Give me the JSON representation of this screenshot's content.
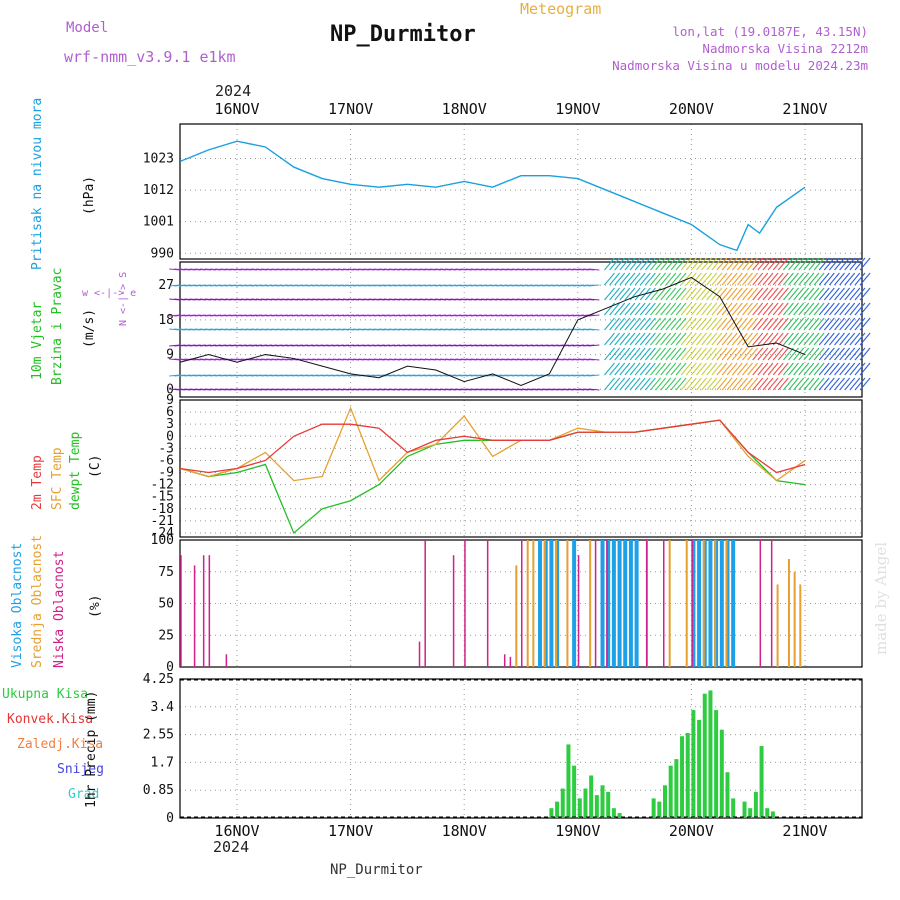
{
  "header": {
    "model_label": "Model",
    "model_value": "wrf-nmm_v3.9.1 e1km",
    "title": "NP_Durmitor",
    "meteogram": "Meteogram",
    "lonlat": "lon,lat (19.0187E, 43.15N)",
    "elev": "Nadmorska Visina 2212m",
    "elev_model": "Nadmorska Visina u modelu 2024.23m",
    "year_top": "2024",
    "year_bottom": "2024",
    "footer": "NP_Durmitor",
    "credit": "made by Angel"
  },
  "colors": {
    "pressure": "#1aa0e0",
    "temp2m": "#e83a3a",
    "sfc": "#e6a030",
    "dew": "#22c022",
    "high_cloud": "#1ea0e8",
    "mid_cloud": "#e6a030",
    "low_cloud": "#d0208a",
    "precip_total": "#2ecc40",
    "precip_conv": "#e53535",
    "snow": "#4444dd"
  },
  "chart_data": [
    {
      "type": "line",
      "panel": "pressure",
      "ylabel": "(hPa)",
      "side_label": "Pritisak na nivou mora",
      "yticks": [
        990,
        1001,
        1012,
        1023
      ],
      "ylim": [
        988,
        1035
      ],
      "xticks": [
        "16NOV",
        "17NOV",
        "18NOV",
        "19NOV",
        "20NOV",
        "21NOV"
      ],
      "x_days": [
        0.0,
        0.25,
        0.5,
        0.75,
        1.0,
        1.25,
        1.5,
        1.75,
        2.0,
        2.25,
        2.5,
        2.75,
        3.0,
        3.25,
        3.5,
        3.75,
        4.0,
        4.25,
        4.5,
        4.75,
        4.9,
        5.0,
        5.1,
        5.25,
        5.5
      ],
      "series": [
        {
          "values": [
            1022,
            1026,
            1029,
            1027,
            1020,
            1016,
            1014,
            1013,
            1014,
            1013,
            1015,
            1013,
            1017,
            1017,
            1016,
            1012,
            1008,
            1004,
            1000,
            993,
            991,
            1000,
            997,
            1006,
            1013
          ]
        }
      ]
    },
    {
      "type": "line",
      "panel": "wind",
      "ylabel": "(m/s)",
      "side_label": "10m Vjetar Brzina i Pravac",
      "compass": "w <-|-> e",
      "compass_ns": "N <-|-> S",
      "yticks": [
        0,
        9,
        18,
        27
      ],
      "ylim": [
        -2,
        33
      ],
      "x_days": [
        0.0,
        0.25,
        0.5,
        0.75,
        1.0,
        1.25,
        1.5,
        1.75,
        2.0,
        2.25,
        2.5,
        2.75,
        3.0,
        3.25,
        3.5,
        3.75,
        4.0,
        4.25,
        4.5,
        4.75,
        5.0,
        5.25,
        5.5
      ],
      "series": [
        {
          "values": [
            7,
            9,
            7,
            9,
            8,
            6,
            4,
            3,
            6,
            5,
            2,
            4,
            1,
            4,
            18,
            21,
            24,
            26,
            29,
            24,
            11,
            12,
            9
          ]
        }
      ]
    },
    {
      "type": "line",
      "panel": "temperature",
      "ylabel": "(C)",
      "side_labels": [
        "2m Temp",
        "SFC Temp",
        "dewpt Temp"
      ],
      "yticks": [
        -24,
        -21,
        -18,
        -15,
        -12,
        -9,
        -6,
        -3,
        0,
        3,
        6,
        9
      ],
      "ylim": [
        -25,
        9
      ],
      "x_days": [
        0.0,
        0.25,
        0.5,
        0.75,
        1.0,
        1.25,
        1.5,
        1.75,
        2.0,
        2.25,
        2.5,
        2.75,
        3.0,
        3.25,
        3.5,
        3.75,
        4.0,
        4.25,
        4.5,
        4.75,
        5.0,
        5.25,
        5.5
      ],
      "series": [
        {
          "name": "2m Temp",
          "values": [
            -8,
            -9,
            -8,
            -6,
            0,
            3,
            3,
            2,
            -4,
            -1,
            0,
            -1,
            -1,
            -1,
            1,
            1,
            1,
            2,
            3,
            4,
            -4,
            -9,
            -7
          ]
        },
        {
          "name": "SFC Temp",
          "values": [
            -8,
            -10,
            -8,
            -4,
            -11,
            -10,
            7,
            -11,
            -4,
            -2,
            5,
            -5,
            -1,
            -1,
            2,
            1,
            1,
            2,
            3,
            4,
            -5,
            -11,
            -6
          ]
        },
        {
          "name": "dewpt Temp",
          "values": [
            -8,
            -10,
            -9,
            -7,
            -24,
            -18,
            -16,
            -12,
            -5,
            -2,
            -1,
            -1,
            -1,
            -1,
            1,
            1,
            1,
            2,
            3,
            4,
            -4,
            -11,
            -12
          ]
        }
      ]
    },
    {
      "type": "bar",
      "panel": "cloud",
      "ylabel": "(%)",
      "side_labels": [
        "Visoka Oblacnost",
        "Srednja Oblacnost",
        "Niska Oblacnost"
      ],
      "yticks": [
        0,
        25,
        50,
        75,
        100
      ],
      "ylim": [
        0,
        100
      ],
      "low_x_days": [
        0.0,
        0.12,
        0.2,
        0.25,
        0.4,
        2.1,
        2.15,
        2.4,
        2.5,
        2.7,
        2.85,
        2.9,
        3.0,
        3.5,
        3.65,
        3.75,
        4.1,
        4.25,
        4.5,
        5.1,
        5.2
      ],
      "low_values": [
        88,
        80,
        88,
        88,
        10,
        20,
        100,
        88,
        100,
        100,
        10,
        8,
        100,
        88,
        100,
        100,
        100,
        100,
        100,
        100,
        100
      ],
      "mid_x_days": [
        2.95,
        3.05,
        3.1,
        3.2,
        3.3,
        3.4,
        3.6,
        4.1,
        4.3,
        4.45,
        4.6,
        4.7,
        4.8,
        5.25,
        5.35,
        5.4,
        5.45
      ],
      "mid_values": [
        80,
        100,
        100,
        100,
        100,
        100,
        100,
        100,
        100,
        100,
        100,
        100,
        100,
        65,
        85,
        75,
        65
      ],
      "high_x_days": [
        3.15,
        3.2,
        3.25,
        3.3,
        3.45,
        3.7,
        3.75,
        3.8,
        3.85,
        3.9,
        3.95,
        4.0,
        4.5,
        4.55,
        4.6,
        4.65,
        4.7,
        4.75,
        4.8,
        4.85
      ],
      "high_values": [
        100,
        100,
        100,
        100,
        100,
        100,
        100,
        100,
        100,
        100,
        100,
        100,
        100,
        100,
        100,
        100,
        100,
        100,
        100,
        100
      ]
    },
    {
      "type": "bar",
      "panel": "precip",
      "ylabel": "1hr Precip (mm)",
      "side_labels": [
        "Ukupna Kisa",
        "Konvek.Kisa",
        "Zaledj.Kisa",
        "Snijeg",
        "Grad"
      ],
      "yticks": [
        0,
        0.85,
        1.7,
        2.55,
        3.4,
        4.25
      ],
      "ylim": [
        0,
        4.25
      ],
      "xticks": [
        "16NOV",
        "17NOV",
        "18NOV",
        "19NOV",
        "20NOV",
        "21NOV"
      ],
      "x_days": [
        3.25,
        3.3,
        3.35,
        3.4,
        3.45,
        3.5,
        3.55,
        3.6,
        3.65,
        3.7,
        3.75,
        3.8,
        3.85,
        4.15,
        4.2,
        4.25,
        4.3,
        4.35,
        4.4,
        4.45,
        4.5,
        4.55,
        4.6,
        4.65,
        4.7,
        4.75,
        4.8,
        4.85,
        4.95,
        5.0,
        5.05,
        5.1,
        5.15,
        5.2
      ],
      "values": [
        0.3,
        0.5,
        0.9,
        2.25,
        1.6,
        0.6,
        0.9,
        1.3,
        0.7,
        1.0,
        0.8,
        0.3,
        0.15,
        0.6,
        0.5,
        1.0,
        1.6,
        1.8,
        2.5,
        2.6,
        3.3,
        3.0,
        3.8,
        3.9,
        3.3,
        2.7,
        1.4,
        0.6,
        0.5,
        0.3,
        0.8,
        2.2,
        0.3,
        0.2
      ]
    }
  ]
}
